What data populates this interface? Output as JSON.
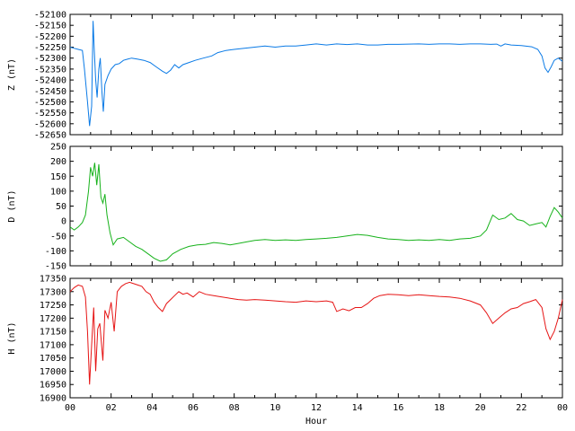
{
  "chart_data": [
    {
      "type": "line",
      "ylabel": "Z (nT)",
      "ylim": [
        -52650,
        -52100
      ],
      "yticks": [
        -52100,
        -52150,
        -52200,
        -52250,
        -52300,
        -52350,
        -52400,
        -52450,
        -52500,
        -52550,
        -52600,
        -52650
      ],
      "series": [
        {
          "color": "#0a7ae6",
          "points": [
            [
              0.0,
              -52250
            ],
            [
              0.2,
              -52255
            ],
            [
              0.4,
              -52260
            ],
            [
              0.6,
              -52265
            ],
            [
              0.7,
              -52350
            ],
            [
              0.85,
              -52500
            ],
            [
              0.95,
              -52610
            ],
            [
              1.05,
              -52520
            ],
            [
              1.12,
              -52130
            ],
            [
              1.18,
              -52260
            ],
            [
              1.25,
              -52400
            ],
            [
              1.32,
              -52480
            ],
            [
              1.4,
              -52350
            ],
            [
              1.47,
              -52300
            ],
            [
              1.55,
              -52450
            ],
            [
              1.62,
              -52545
            ],
            [
              1.7,
              -52420
            ],
            [
              1.85,
              -52380
            ],
            [
              2.0,
              -52350
            ],
            [
              2.2,
              -52330
            ],
            [
              2.4,
              -52325
            ],
            [
              2.6,
              -52310
            ],
            [
              2.8,
              -52305
            ],
            [
              3.0,
              -52300
            ],
            [
              3.3,
              -52305
            ],
            [
              3.6,
              -52310
            ],
            [
              3.9,
              -52320
            ],
            [
              4.2,
              -52340
            ],
            [
              4.5,
              -52360
            ],
            [
              4.7,
              -52370
            ],
            [
              4.9,
              -52355
            ],
            [
              5.1,
              -52330
            ],
            [
              5.3,
              -52345
            ],
            [
              5.5,
              -52330
            ],
            [
              5.8,
              -52320
            ],
            [
              6.1,
              -52310
            ],
            [
              6.5,
              -52300
            ],
            [
              6.9,
              -52290
            ],
            [
              7.2,
              -52275
            ],
            [
              7.6,
              -52265
            ],
            [
              8.0,
              -52260
            ],
            [
              8.5,
              -52255
            ],
            [
              9.0,
              -52250
            ],
            [
              9.5,
              -52245
            ],
            [
              10.0,
              -52250
            ],
            [
              10.5,
              -52245
            ],
            [
              11.0,
              -52245
            ],
            [
              11.5,
              -52240
            ],
            [
              12.0,
              -52235
            ],
            [
              12.5,
              -52240
            ],
            [
              13.0,
              -52235
            ],
            [
              13.5,
              -52238
            ],
            [
              14.0,
              -52235
            ],
            [
              14.5,
              -52240
            ],
            [
              15.0,
              -52240
            ],
            [
              15.5,
              -52237
            ],
            [
              16.0,
              -52237
            ],
            [
              16.5,
              -52236
            ],
            [
              17.0,
              -52235
            ],
            [
              17.5,
              -52237
            ],
            [
              18.0,
              -52235
            ],
            [
              18.5,
              -52235
            ],
            [
              19.0,
              -52237
            ],
            [
              19.5,
              -52235
            ],
            [
              20.0,
              -52235
            ],
            [
              20.5,
              -52237
            ],
            [
              20.8,
              -52236
            ],
            [
              21.0,
              -52245
            ],
            [
              21.2,
              -52235
            ],
            [
              21.5,
              -52240
            ],
            [
              22.0,
              -52243
            ],
            [
              22.5,
              -52248
            ],
            [
              22.8,
              -52260
            ],
            [
              23.0,
              -52290
            ],
            [
              23.15,
              -52345
            ],
            [
              23.3,
              -52365
            ],
            [
              23.45,
              -52340
            ],
            [
              23.6,
              -52310
            ],
            [
              23.8,
              -52300
            ],
            [
              24.0,
              -52315
            ]
          ]
        }
      ]
    },
    {
      "type": "line",
      "ylabel": "D (nT)",
      "ylim": [
        -150,
        250
      ],
      "yticks": [
        -150,
        -100,
        -50,
        0,
        50,
        100,
        150,
        200,
        250
      ],
      "series": [
        {
          "color": "#17b21b",
          "points": [
            [
              0.0,
              -20
            ],
            [
              0.2,
              -30
            ],
            [
              0.4,
              -20
            ],
            [
              0.6,
              -5
            ],
            [
              0.75,
              20
            ],
            [
              0.9,
              100
            ],
            [
              1.0,
              180
            ],
            [
              1.1,
              150
            ],
            [
              1.2,
              195
            ],
            [
              1.3,
              120
            ],
            [
              1.4,
              190
            ],
            [
              1.5,
              80
            ],
            [
              1.6,
              60
            ],
            [
              1.7,
              90
            ],
            [
              1.8,
              20
            ],
            [
              1.95,
              -40
            ],
            [
              2.1,
              -80
            ],
            [
              2.3,
              -60
            ],
            [
              2.6,
              -55
            ],
            [
              2.9,
              -70
            ],
            [
              3.2,
              -85
            ],
            [
              3.5,
              -95
            ],
            [
              3.8,
              -110
            ],
            [
              4.1,
              -125
            ],
            [
              4.4,
              -135
            ],
            [
              4.7,
              -130
            ],
            [
              5.0,
              -110
            ],
            [
              5.4,
              -95
            ],
            [
              5.8,
              -85
            ],
            [
              6.2,
              -80
            ],
            [
              6.6,
              -78
            ],
            [
              7.0,
              -72
            ],
            [
              7.4,
              -75
            ],
            [
              7.8,
              -80
            ],
            [
              8.2,
              -75
            ],
            [
              8.6,
              -70
            ],
            [
              9.0,
              -65
            ],
            [
              9.5,
              -62
            ],
            [
              10.0,
              -65
            ],
            [
              10.5,
              -63
            ],
            [
              11.0,
              -65
            ],
            [
              11.5,
              -62
            ],
            [
              12.0,
              -60
            ],
            [
              12.5,
              -58
            ],
            [
              13.0,
              -55
            ],
            [
              13.5,
              -50
            ],
            [
              14.0,
              -45
            ],
            [
              14.5,
              -48
            ],
            [
              15.0,
              -55
            ],
            [
              15.5,
              -60
            ],
            [
              16.0,
              -62
            ],
            [
              16.5,
              -65
            ],
            [
              17.0,
              -63
            ],
            [
              17.5,
              -65
            ],
            [
              18.0,
              -62
            ],
            [
              18.5,
              -65
            ],
            [
              19.0,
              -60
            ],
            [
              19.5,
              -58
            ],
            [
              20.0,
              -50
            ],
            [
              20.3,
              -30
            ],
            [
              20.6,
              20
            ],
            [
              20.9,
              5
            ],
            [
              21.2,
              10
            ],
            [
              21.5,
              25
            ],
            [
              21.8,
              5
            ],
            [
              22.1,
              0
            ],
            [
              22.4,
              -15
            ],
            [
              22.7,
              -10
            ],
            [
              23.0,
              -5
            ],
            [
              23.2,
              -20
            ],
            [
              23.4,
              15
            ],
            [
              23.6,
              45
            ],
            [
              23.8,
              30
            ],
            [
              24.0,
              10
            ]
          ]
        }
      ]
    },
    {
      "type": "line",
      "ylabel": "H (nT)",
      "xlabel": "Hour",
      "ylim": [
        16900,
        17350
      ],
      "yticks": [
        16900,
        16950,
        17000,
        17050,
        17100,
        17150,
        17200,
        17250,
        17300,
        17350
      ],
      "xticks": [
        "00",
        "02",
        "04",
        "06",
        "08",
        "10",
        "12",
        "14",
        "16",
        "18",
        "20",
        "22",
        "00"
      ],
      "xlim": [
        0,
        24
      ],
      "series": [
        {
          "color": "#e61515",
          "points": [
            [
              0.0,
              17300
            ],
            [
              0.2,
              17315
            ],
            [
              0.4,
              17325
            ],
            [
              0.6,
              17320
            ],
            [
              0.75,
              17280
            ],
            [
              0.85,
              17150
            ],
            [
              0.95,
              16950
            ],
            [
              1.05,
              17100
            ],
            [
              1.15,
              17240
            ],
            [
              1.25,
              17000
            ],
            [
              1.35,
              17160
            ],
            [
              1.45,
              17180
            ],
            [
              1.6,
              17040
            ],
            [
              1.7,
              17230
            ],
            [
              1.85,
              17200
            ],
            [
              2.0,
              17260
            ],
            [
              2.15,
              17150
            ],
            [
              2.3,
              17300
            ],
            [
              2.5,
              17320
            ],
            [
              2.7,
              17330
            ],
            [
              2.9,
              17335
            ],
            [
              3.1,
              17330
            ],
            [
              3.3,
              17325
            ],
            [
              3.5,
              17320
            ],
            [
              3.7,
              17300
            ],
            [
              3.9,
              17290
            ],
            [
              4.1,
              17260
            ],
            [
              4.3,
              17240
            ],
            [
              4.5,
              17225
            ],
            [
              4.7,
              17255
            ],
            [
              4.9,
              17270
            ],
            [
              5.1,
              17285
            ],
            [
              5.3,
              17300
            ],
            [
              5.5,
              17290
            ],
            [
              5.7,
              17295
            ],
            [
              6.0,
              17280
            ],
            [
              6.3,
              17300
            ],
            [
              6.6,
              17290
            ],
            [
              7.0,
              17285
            ],
            [
              7.4,
              17280
            ],
            [
              7.8,
              17275
            ],
            [
              8.2,
              17270
            ],
            [
              8.6,
              17268
            ],
            [
              9.0,
              17270
            ],
            [
              9.5,
              17268
            ],
            [
              10.0,
              17265
            ],
            [
              10.5,
              17262
            ],
            [
              11.0,
              17260
            ],
            [
              11.5,
              17265
            ],
            [
              12.0,
              17262
            ],
            [
              12.5,
              17265
            ],
            [
              12.8,
              17260
            ],
            [
              13.0,
              17225
            ],
            [
              13.3,
              17235
            ],
            [
              13.6,
              17228
            ],
            [
              13.9,
              17240
            ],
            [
              14.2,
              17240
            ],
            [
              14.5,
              17255
            ],
            [
              14.8,
              17275
            ],
            [
              15.1,
              17285
            ],
            [
              15.5,
              17290
            ],
            [
              16.0,
              17288
            ],
            [
              16.5,
              17285
            ],
            [
              17.0,
              17288
            ],
            [
              17.5,
              17285
            ],
            [
              18.0,
              17282
            ],
            [
              18.5,
              17280
            ],
            [
              19.0,
              17275
            ],
            [
              19.5,
              17265
            ],
            [
              20.0,
              17250
            ],
            [
              20.3,
              17220
            ],
            [
              20.6,
              17180
            ],
            [
              20.9,
              17200
            ],
            [
              21.2,
              17220
            ],
            [
              21.5,
              17235
            ],
            [
              21.8,
              17240
            ],
            [
              22.1,
              17255
            ],
            [
              22.4,
              17262
            ],
            [
              22.7,
              17270
            ],
            [
              23.0,
              17240
            ],
            [
              23.2,
              17160
            ],
            [
              23.4,
              17120
            ],
            [
              23.6,
              17150
            ],
            [
              23.8,
              17200
            ],
            [
              24.0,
              17270
            ]
          ]
        }
      ]
    }
  ]
}
